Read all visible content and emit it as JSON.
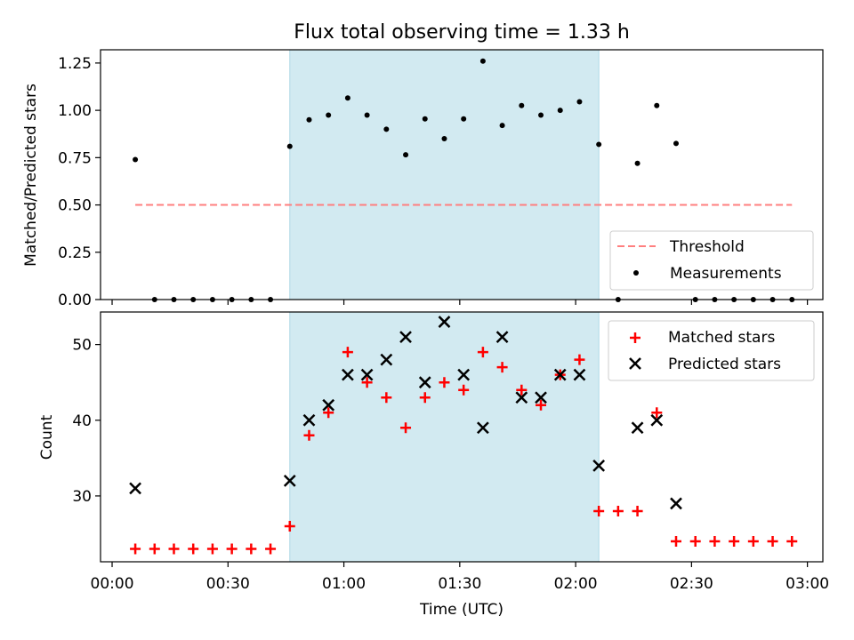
{
  "title": "Flux total observing time = 1.33 h",
  "xlabel": "Time (UTC)",
  "x_ticks": [
    "00:00",
    "00:30",
    "01:00",
    "01:30",
    "02:00",
    "02:30",
    "03:00"
  ],
  "colors": {
    "shade": "#add8e6",
    "threshold": "#ff7f7f",
    "measurement": "#000000",
    "matched": "#ff0000",
    "predicted": "#000000"
  },
  "chart_data": [
    {
      "type": "scatter",
      "ylabel": "Matched/Predicted stars",
      "xlim": [
        "23:57",
        "03:04"
      ],
      "ylim": [
        0,
        1.32
      ],
      "y_ticks": [
        "0.00",
        "0.25",
        "0.50",
        "0.75",
        "1.00",
        "1.25"
      ],
      "shaded_interval": [
        "00:46",
        "02:06"
      ],
      "threshold": {
        "name": "Threshold",
        "value": 0.5,
        "x": [
          "00:06",
          "02:56"
        ]
      },
      "legend_position": "lower right",
      "series": [
        {
          "name": "Measurements",
          "x": [
            "00:06",
            "00:11",
            "00:16",
            "00:21",
            "00:26",
            "00:31",
            "00:36",
            "00:41",
            "00:46",
            "00:51",
            "00:56",
            "01:01",
            "01:06",
            "01:11",
            "01:16",
            "01:21",
            "01:26",
            "01:31",
            "01:36",
            "01:41",
            "01:46",
            "01:51",
            "01:56",
            "02:01",
            "02:06",
            "02:11",
            "02:16",
            "02:21",
            "02:26",
            "02:31",
            "02:36",
            "02:41",
            "02:46",
            "02:51",
            "02:56"
          ],
          "y": [
            0.74,
            0,
            0,
            0,
            0,
            0,
            0,
            0,
            0.81,
            0.95,
            0.975,
            1.065,
            0.975,
            0.9,
            0.765,
            0.955,
            0.85,
            0.955,
            1.26,
            0.92,
            1.025,
            0.975,
            1.0,
            1.045,
            0.82,
            0,
            0.72,
            1.025,
            0.825,
            0,
            0,
            0,
            0,
            0,
            0
          ]
        }
      ]
    },
    {
      "type": "scatter",
      "ylabel": "Count",
      "xlim": [
        "23:57",
        "03:04"
      ],
      "ylim": [
        21.3,
        54.3
      ],
      "y_ticks": [
        "30",
        "40",
        "50"
      ],
      "shaded_interval": [
        "00:46",
        "02:06"
      ],
      "legend_position": "upper right",
      "series": [
        {
          "name": "Matched stars",
          "x": [
            "00:06",
            "00:11",
            "00:16",
            "00:21",
            "00:26",
            "00:31",
            "00:36",
            "00:41",
            "00:46",
            "00:51",
            "00:56",
            "01:01",
            "01:06",
            "01:11",
            "01:16",
            "01:21",
            "01:26",
            "01:31",
            "01:36",
            "01:41",
            "01:46",
            "01:51",
            "01:56",
            "02:01",
            "02:06",
            "02:11",
            "02:16",
            "02:21",
            "02:26",
            "02:31",
            "02:36",
            "02:41",
            "02:46",
            "02:51",
            "02:56"
          ],
          "y": [
            23,
            23,
            23,
            23,
            23,
            23,
            23,
            23,
            26,
            38,
            41,
            49,
            45,
            43,
            39,
            43,
            45,
            44,
            49,
            47,
            44,
            42,
            46,
            48,
            28,
            28,
            28,
            41,
            24,
            24,
            24,
            24,
            24,
            24,
            24
          ]
        },
        {
          "name": "Predicted stars",
          "x": [
            "00:06",
            "00:46",
            "00:51",
            "00:56",
            "01:01",
            "01:06",
            "01:11",
            "01:16",
            "01:21",
            "01:26",
            "01:31",
            "01:36",
            "01:41",
            "01:46",
            "01:51",
            "01:56",
            "02:01",
            "02:06",
            "02:16",
            "02:21",
            "02:26"
          ],
          "y": [
            31,
            32,
            40,
            42,
            46,
            46,
            48,
            51,
            45,
            53,
            46,
            39,
            51,
            43,
            43,
            46,
            46,
            34,
            39,
            40,
            29
          ]
        }
      ]
    }
  ]
}
